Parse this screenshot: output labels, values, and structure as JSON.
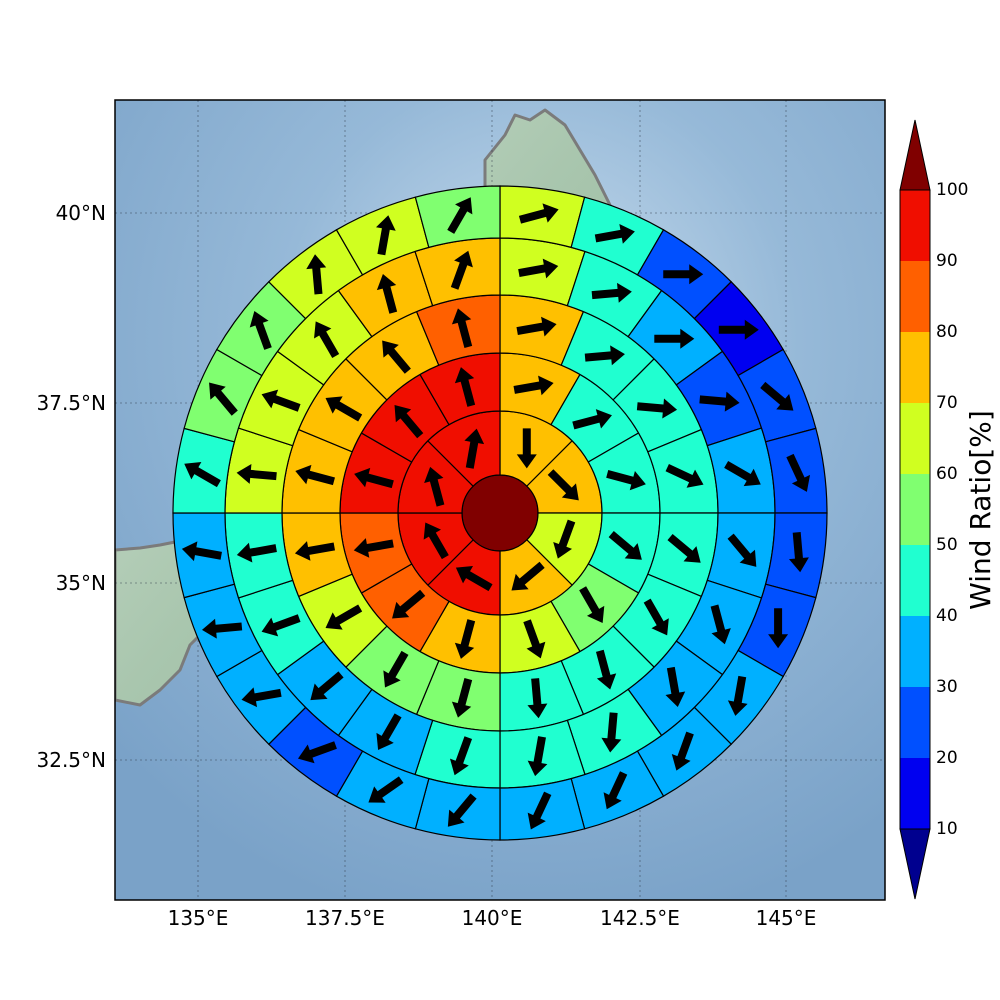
{
  "map": {
    "lon_labels": [
      "135°E",
      "137.5°E",
      "140°E",
      "142.5°E",
      "145°E"
    ],
    "lat_labels": [
      "40°N",
      "37.5°N",
      "35°N",
      "32.5°N"
    ],
    "lon_values": [
      135,
      137.5,
      140,
      142.5,
      145
    ],
    "lat_values": [
      40,
      37.5,
      35,
      32.5
    ]
  },
  "colorbar": {
    "title": "Wind Ratio[%]",
    "tick_labels": [
      "10",
      "20",
      "30",
      "40",
      "50",
      "60",
      "70",
      "80",
      "90",
      "100"
    ],
    "levels": [
      {
        "min": 0,
        "max": 10,
        "color": "#00008f"
      },
      {
        "min": 10,
        "max": 20,
        "color": "#0000f0"
      },
      {
        "min": 20,
        "max": 30,
        "color": "#0050ff"
      },
      {
        "min": 30,
        "max": 40,
        "color": "#00b0ff"
      },
      {
        "min": 40,
        "max": 50,
        "color": "#20ffd0"
      },
      {
        "min": 50,
        "max": 60,
        "color": "#80ff70"
      },
      {
        "min": 60,
        "max": 70,
        "color": "#d0ff20"
      },
      {
        "min": 70,
        "max": 80,
        "color": "#ffc000"
      },
      {
        "min": 80,
        "max": 90,
        "color": "#ff6000"
      },
      {
        "min": 90,
        "max": 100,
        "color": "#f00e00"
      },
      {
        "min": 100,
        "max": 110,
        "color": "#800000"
      }
    ]
  },
  "chart_data": {
    "type": "polar-grid",
    "center_value": 100,
    "rings": [
      {
        "ring": 1,
        "values": [
          70,
          70,
          60,
          70,
          90,
          90,
          90,
          90
        ]
      },
      {
        "ring": 2,
        "values": [
          70,
          40,
          40,
          40,
          50,
          60,
          70,
          80,
          80,
          90,
          90,
          90
        ]
      },
      {
        "ring": 3,
        "values": [
          70,
          40,
          40,
          40,
          40,
          40,
          40,
          40,
          50,
          50,
          60,
          70,
          70,
          70,
          70,
          80
        ]
      },
      {
        "ring": 4,
        "values": [
          60,
          40,
          30,
          20,
          30,
          30,
          30,
          30,
          40,
          40,
          40,
          30,
          30,
          40,
          40,
          60,
          60,
          60,
          70,
          70
        ]
      },
      {
        "ring": 5,
        "values": [
          60,
          40,
          20,
          10,
          20,
          20,
          20,
          20,
          30,
          30,
          30,
          30,
          30,
          30,
          20,
          30,
          30,
          30,
          40,
          50,
          50,
          60,
          60,
          50
        ]
      }
    ],
    "arrows": [
      {
        "ring": 1,
        "directions": [
          180,
          135,
          200,
          230,
          300,
          330,
          345,
          10
        ]
      },
      {
        "ring": 2,
        "directions": [
          80,
          75,
          105,
          130,
          150,
          160,
          195,
          230,
          260,
          285,
          320,
          345
        ]
      },
      {
        "ring": 3,
        "directions": [
          80,
          85,
          95,
          115,
          130,
          150,
          165,
          175,
          195,
          210,
          240,
          260,
          285,
          300,
          320,
          345
        ]
      },
      {
        "ring": 4,
        "directions": [
          80,
          85,
          90,
          95,
          120,
          140,
          165,
          170,
          185,
          190,
          200,
          210,
          230,
          250,
          260,
          275,
          290,
          330,
          345,
          20
        ]
      },
      {
        "ring": 5,
        "directions": [
          75,
          80,
          90,
          90,
          130,
          155,
          175,
          180,
          190,
          200,
          205,
          205,
          220,
          235,
          250,
          260,
          265,
          280,
          300,
          320,
          340,
          355,
          10,
          30
        ]
      }
    ]
  }
}
